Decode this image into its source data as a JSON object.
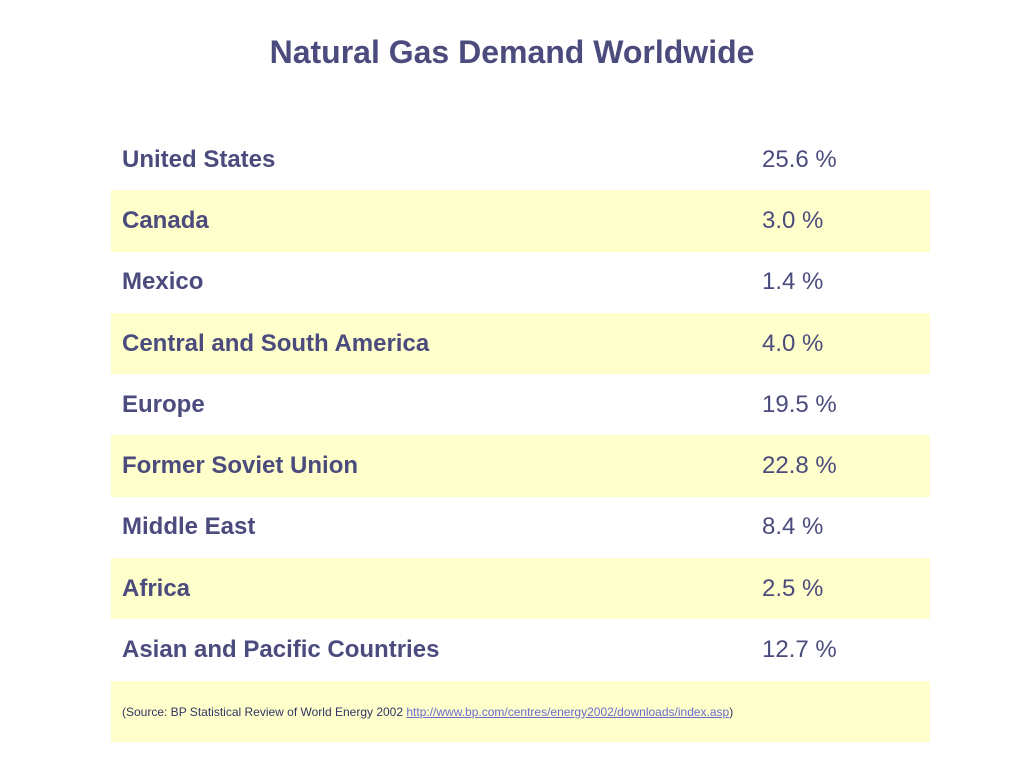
{
  "title": "Natural Gas Demand Worldwide",
  "colors": {
    "text": "#4b4b7d",
    "row_shade": "#ffffcc",
    "link": "#6a6ad0"
  },
  "rows": [
    {
      "region": "United States",
      "value": "25.6 %"
    },
    {
      "region": "Canada",
      "value": "3.0 %"
    },
    {
      "region": "Mexico",
      "value": "1.4 %"
    },
    {
      "region": "Central and South America",
      "value": "4.0 %"
    },
    {
      "region": "Europe",
      "value": "19.5 %"
    },
    {
      "region": "Former Soviet Union",
      "value": "22.8 %"
    },
    {
      "region": "Middle East",
      "value": "8.4 %"
    },
    {
      "region": "Africa",
      "value": "2.5 %"
    },
    {
      "region": "Asian and Pacific Countries",
      "value": "12.7 %"
    }
  ],
  "source": {
    "prefix": "(Source: BP Statistical Review of World Energy 2002 ",
    "link_text": "http://www.bp.com/centres/energy2002/downloads/index.asp",
    "suffix": ")"
  }
}
